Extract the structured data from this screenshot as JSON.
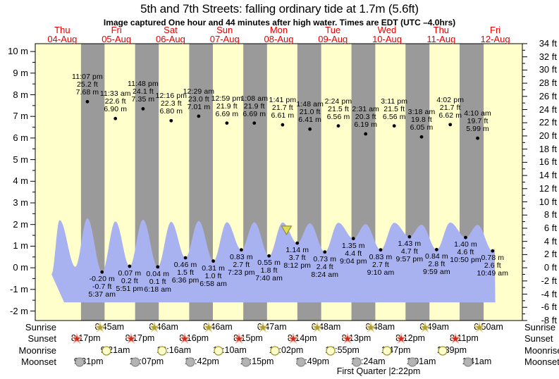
{
  "title": "5th and 7th Streets: falling  ordinary tide at 1.7m (5.6ft)",
  "subtitle": "Image captured One hour and 44 minutes after high water. Times are EDT (UTC –4.0hrs)",
  "days": [
    {
      "name": "Thu",
      "date": "04-Aug"
    },
    {
      "name": "Fri",
      "date": "05-Aug"
    },
    {
      "name": "Sat",
      "date": "06-Aug"
    },
    {
      "name": "Sun",
      "date": "07-Aug"
    },
    {
      "name": "Mon",
      "date": "08-Aug"
    },
    {
      "name": "Tue",
      "date": "09-Aug"
    },
    {
      "name": "Wed",
      "date": "10-Aug"
    },
    {
      "name": "Thu",
      "date": "11-Aug"
    },
    {
      "name": "Fri",
      "date": "12-Aug"
    }
  ],
  "chart_data": {
    "type": "area",
    "y_axis_left": {
      "unit": "m",
      "min": -2,
      "max": 10,
      "label_step": 1
    },
    "y_axis_right": {
      "unit": "ft",
      "min": -8,
      "max": 34,
      "label_step": 2
    },
    "colors": {
      "day_band": "#ffffcc",
      "night_band": "#9a9a9a",
      "tide_area": "#a9b2f1",
      "day_label": "#e60000",
      "marker": "#e0dc52"
    },
    "high_tides": [
      {
        "day": 0,
        "time": "11:07 pm",
        "ft": "25.2 ft",
        "m": "7.68 m"
      },
      {
        "day": 1,
        "time": "11:33 am",
        "ft": "22.6 ft",
        "m": "6.90 m"
      },
      {
        "day": 1,
        "time": "11:48 pm",
        "ft": "24.1 ft",
        "m": "7.35 m"
      },
      {
        "day": 2,
        "time": "12:16 pm",
        "ft": "22.3 ft",
        "m": "6.80 m"
      },
      {
        "day": 3,
        "time": "12:29 am",
        "ft": "23.0 ft",
        "m": "7.01 m"
      },
      {
        "day": 3,
        "time": "12:59 pm",
        "ft": "21.9 ft",
        "m": "6.69 m"
      },
      {
        "day": 4,
        "time": "1:08 am",
        "ft": "21.9 ft",
        "m": "6.69 m"
      },
      {
        "day": 4,
        "time": "1:41 pm",
        "ft": "21.7 ft",
        "m": "6.61 m"
      },
      {
        "day": 5,
        "time": "1:48 am",
        "ft": "21.0 ft",
        "m": "6.41 m"
      },
      {
        "day": 5,
        "time": "2:24 pm",
        "ft": "21.5 ft",
        "m": "6.56 m"
      },
      {
        "day": 6,
        "time": "2:31 am",
        "ft": "20.3 ft",
        "m": "6.19 m"
      },
      {
        "day": 6,
        "time": "3:11 pm",
        "ft": "21.5 ft",
        "m": "6.56 m"
      },
      {
        "day": 7,
        "time": "3:18 am",
        "ft": "19.8 ft",
        "m": "6.05 m"
      },
      {
        "day": 7,
        "time": "4:02 pm",
        "ft": "21.7 ft",
        "m": "6.62 m"
      },
      {
        "day": 8,
        "time": "4:10 am",
        "ft": "19.7 ft",
        "m": "5.99 m"
      }
    ],
    "low_tides": [
      {
        "day": 1,
        "m": "-0.20 m",
        "ft": "-0.7 ft",
        "time": "5:37 am"
      },
      {
        "day": 1,
        "m": "0.07 m",
        "ft": "0.2 ft",
        "time": "5:51 pm"
      },
      {
        "day": 2,
        "m": "0.04 m",
        "ft": "0.1 ft",
        "time": "6:18 am"
      },
      {
        "day": 2,
        "m": "0.46 m",
        "ft": "1.5 ft",
        "time": "6:36 pm"
      },
      {
        "day": 3,
        "m": "0.31 m",
        "ft": "1.0 ft",
        "time": "6:58 am"
      },
      {
        "day": 3,
        "m": "0.83 m",
        "ft": "2.7 ft",
        "time": "7:23 pm"
      },
      {
        "day": 4,
        "m": "0.55 m",
        "ft": "1.8 ft",
        "time": "7:40 am"
      },
      {
        "day": 4,
        "m": "1.14 m",
        "ft": "3.7 ft",
        "time": "8:12 pm"
      },
      {
        "day": 5,
        "m": "0.73 m",
        "ft": "2.4 ft",
        "time": "8:24 am"
      },
      {
        "day": 5,
        "m": "1.35 m",
        "ft": "4.4 ft",
        "time": "9:04 pm"
      },
      {
        "day": 6,
        "m": "0.83 m",
        "ft": "2.7 ft",
        "time": "9:10 am"
      },
      {
        "day": 6,
        "m": "1.43 m",
        "ft": "4.7 ft",
        "time": "9:57 pm"
      },
      {
        "day": 7,
        "m": "0.84 m",
        "ft": "2.8 ft",
        "time": "9:59 am"
      },
      {
        "day": 7,
        "m": "1.40 m",
        "ft": "4.6 ft",
        "time": "10:50 pm"
      },
      {
        "day": 8,
        "m": "0.78 m",
        "ft": "2.6 ft",
        "time": "10:49 am"
      }
    ],
    "current_marker": {
      "height_m": "1.7",
      "after_high_minutes": 104,
      "reference_high_index": 7
    }
  },
  "astro": {
    "rows": [
      {
        "label": "Sunrise",
        "icon": "sunrise-star",
        "events": [
          {
            "day": 1,
            "time": "6:45am"
          },
          {
            "day": 2,
            "time": "6:46am"
          },
          {
            "day": 3,
            "time": "6:46am"
          },
          {
            "day": 4,
            "time": "6:47am"
          },
          {
            "day": 5,
            "time": "6:48am"
          },
          {
            "day": 6,
            "time": "6:48am"
          },
          {
            "day": 7,
            "time": "6:49am"
          },
          {
            "day": 8,
            "time": "6:50am"
          }
        ]
      },
      {
        "label": "Sunset",
        "icon": "sunset-star",
        "events": [
          {
            "day": 0,
            "time": "8:17pm"
          },
          {
            "day": 1,
            "time": "8:17pm"
          },
          {
            "day": 2,
            "time": "8:16pm"
          },
          {
            "day": 3,
            "time": "8:15pm"
          },
          {
            "day": 4,
            "time": "8:14pm"
          },
          {
            "day": 5,
            "time": "8:13pm"
          },
          {
            "day": 6,
            "time": "8:12pm"
          },
          {
            "day": 7,
            "time": "8:11pm"
          }
        ]
      },
      {
        "label": "Moonrise",
        "icon": "moonrise-circle",
        "events": [
          {
            "day": 1,
            "time": "9:21am"
          },
          {
            "day": 2,
            "time": "10:16am"
          },
          {
            "day": 3,
            "time": "11:10am"
          },
          {
            "day": 4,
            "time": "12:02pm"
          },
          {
            "day": 5,
            "time": "12:55pm"
          },
          {
            "day": 6,
            "time": "1:47pm"
          },
          {
            "day": 7,
            "time": "2:39pm"
          }
        ]
      },
      {
        "label": "Moonset",
        "icon": "moonset-circle",
        "events": [
          {
            "day": 0,
            "time": "9:31pm"
          },
          {
            "day": 1,
            "time": "10:07pm"
          },
          {
            "day": 2,
            "time": "10:42pm"
          },
          {
            "day": 3,
            "time": "11:15pm"
          },
          {
            "day": 4,
            "time": "11:49pm"
          },
          {
            "day": 6,
            "time": "12:24am"
          },
          {
            "day": 7,
            "time": "1:01am"
          },
          {
            "day": 8,
            "time": "1:41am"
          }
        ]
      }
    ],
    "moon_phase": "First Quarter |2:22pm"
  }
}
